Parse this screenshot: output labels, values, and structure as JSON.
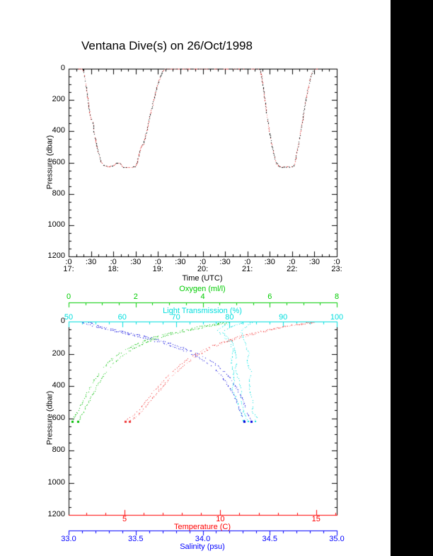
{
  "page": {
    "background": "#ffffff",
    "right_band_color": "#000000"
  },
  "chart_data": [
    {
      "type": "line",
      "title": "Ventana Dive(s) on 26/Oct/1998",
      "xlabel": "Time (UTC)",
      "ylabel": "Pressure (dbar)",
      "xlim_hours": [
        17,
        23
      ],
      "ylim": [
        0,
        1200
      ],
      "grid": false,
      "y_tick_values": [
        0,
        200,
        400,
        600,
        800,
        1000,
        1200
      ],
      "y_tick_labels": [
        "0",
        "200",
        "400",
        "600",
        "800",
        "1000",
        "1200"
      ],
      "y_minor_step": 50,
      "x_major_step_hours": 0.5,
      "x_minor_step_hours": 0.16667,
      "x_tick_labels_minute_row": [
        ":0",
        ":30",
        ":0",
        ":30",
        ":0",
        ":30",
        ":0",
        ":30",
        ":0",
        ":30",
        ":0",
        ":30",
        ":0"
      ],
      "x_tick_labels_hour_row": [
        "17:",
        "18:",
        "19:",
        "20:",
        "21:",
        "22:",
        "23:"
      ],
      "axis_color": "#000000",
      "series": [
        {
          "name": "dive-depth-profile",
          "style": "dotted",
          "dot_colors": [
            "#000000",
            "#000000",
            "#cc2222",
            "#ee7777"
          ],
          "points_time_pressure": [
            [
              17.22,
              0
            ],
            [
              17.31,
              0
            ],
            [
              17.35,
              40
            ],
            [
              17.4,
              140
            ],
            [
              17.44,
              230
            ],
            [
              17.48,
              300
            ],
            [
              17.51,
              330
            ],
            [
              17.54,
              345
            ],
            [
              17.57,
              420
            ],
            [
              17.61,
              475
            ],
            [
              17.65,
              525
            ],
            [
              17.69,
              570
            ],
            [
              17.73,
              600
            ],
            [
              17.77,
              615
            ],
            [
              17.83,
              622
            ],
            [
              17.9,
              625
            ],
            [
              17.97,
              621
            ],
            [
              18.02,
              616
            ],
            [
              18.06,
              604
            ],
            [
              18.1,
              600
            ],
            [
              18.14,
              604
            ],
            [
              18.18,
              616
            ],
            [
              18.22,
              628
            ],
            [
              18.3,
              630
            ],
            [
              18.42,
              629
            ],
            [
              18.49,
              624
            ],
            [
              18.53,
              598
            ],
            [
              18.57,
              548
            ],
            [
              18.6,
              510
            ],
            [
              18.63,
              488
            ],
            [
              18.67,
              483
            ],
            [
              18.71,
              432
            ],
            [
              18.76,
              372
            ],
            [
              18.81,
              308
            ],
            [
              18.86,
              246
            ],
            [
              18.91,
              186
            ],
            [
              18.96,
              128
            ],
            [
              19.01,
              78
            ],
            [
              19.06,
              40
            ],
            [
              19.1,
              14
            ],
            [
              19.15,
              2
            ],
            [
              19.21,
              0
            ],
            [
              21.27,
              0
            ],
            [
              21.31,
              45
            ],
            [
              21.36,
              140
            ],
            [
              21.41,
              250
            ],
            [
              21.46,
              350
            ],
            [
              21.51,
              440
            ],
            [
              21.56,
              515
            ],
            [
              21.61,
              572
            ],
            [
              21.65,
              605
            ],
            [
              21.69,
              620
            ],
            [
              21.74,
              626
            ],
            [
              21.88,
              628
            ],
            [
              22.01,
              626
            ],
            [
              22.05,
              612
            ],
            [
              22.09,
              558
            ],
            [
              22.14,
              478
            ],
            [
              22.19,
              392
            ],
            [
              22.24,
              308
            ],
            [
              22.29,
              222
            ],
            [
              22.34,
              142
            ],
            [
              22.39,
              78
            ],
            [
              22.43,
              34
            ],
            [
              22.47,
              8
            ],
            [
              22.51,
              0
            ],
            [
              22.58,
              0
            ]
          ]
        }
      ]
    },
    {
      "type": "scatter",
      "ylabel": "Pressure (dbar)",
      "ylim": [
        0,
        1200
      ],
      "y_tick_values": [
        0,
        200,
        400,
        600,
        800,
        1000,
        1200
      ],
      "y_tick_labels": [
        "0",
        "200",
        "400",
        "600",
        "800",
        "1000",
        "1200"
      ],
      "y_minor_step": 50,
      "x_axes": [
        {
          "name": "oxygen",
          "label": "Oxygen (ml/l)",
          "color": "#00cc00",
          "range": [
            0,
            8
          ],
          "tick_values": [
            0,
            2,
            4,
            6,
            8
          ],
          "tick_labels": [
            "0",
            "2",
            "4",
            "6",
            "8"
          ],
          "minor_step": 0.5,
          "position": "floating-top"
        },
        {
          "name": "light-transmission",
          "label": "Light Transmission (%)",
          "color": "#00dede",
          "range": [
            50,
            100
          ],
          "tick_values": [
            50,
            60,
            70,
            80,
            90,
            100
          ],
          "tick_labels": [
            "50",
            "60",
            "70",
            "80",
            "90",
            "100"
          ],
          "minor_step": 2.5,
          "position": "top-edge"
        },
        {
          "name": "temperature",
          "label": "Temperature (C)",
          "color": "#ff0000",
          "range": [
            2.08,
            16.08
          ],
          "tick_values": [
            5,
            10,
            15
          ],
          "tick_labels": [
            "5",
            "10",
            "15"
          ],
          "minor_step": 1,
          "position": "bottom-edge"
        },
        {
          "name": "salinity",
          "label": "Salinity (psu)",
          "color": "#0000ff",
          "range": [
            33.0,
            35.0
          ],
          "tick_values": [
            33.0,
            33.5,
            34.0,
            34.5,
            35.0
          ],
          "tick_labels": [
            "33.0",
            "33.5",
            "34.0",
            "34.5",
            "35.0"
          ],
          "minor_step": 0.1,
          "position": "floating-bottom"
        }
      ],
      "series": [
        {
          "name": "oxygen-profile",
          "axis": "oxygen",
          "dot_colors": [
            "#00bb00",
            "#00bb00",
            "#55dd55"
          ],
          "trace_value_offsets": [
            0,
            0.18
          ],
          "end_blob": true,
          "traces": [
            [
              [
                4.6,
                4
              ],
              [
                4.35,
                14
              ],
              [
                3.95,
                28
              ],
              [
                3.5,
                48
              ],
              [
                3.05,
                68
              ],
              [
                2.65,
                90
              ],
              [
                2.3,
                112
              ],
              [
                2.05,
                135
              ],
              [
                1.8,
                160
              ],
              [
                1.58,
                188
              ],
              [
                1.38,
                218
              ],
              [
                1.18,
                252
              ],
              [
                1.0,
                292
              ],
              [
                0.85,
                335
              ],
              [
                0.7,
                382
              ],
              [
                0.58,
                430
              ],
              [
                0.45,
                480
              ],
              [
                0.33,
                528
              ],
              [
                0.23,
                568
              ],
              [
                0.15,
                598
              ],
              [
                0.1,
                618
              ]
            ]
          ]
        },
        {
          "name": "light-transmission-profile",
          "axis": "light-transmission",
          "dot_colors": [
            "#00dddd",
            "#00dddd",
            "#77ffff"
          ],
          "trace_value_offsets": [
            0
          ],
          "end_blob": false,
          "wiggle": true,
          "traces": [
            [
              [
                82.5,
                2
              ],
              [
                81.2,
                18
              ],
              [
                79.4,
                42
              ],
              [
                78.4,
                66
              ],
              [
                79.4,
                96
              ],
              [
                80.6,
                134
              ],
              [
                81.1,
                182
              ],
              [
                81.5,
                240
              ],
              [
                81.0,
                300
              ],
              [
                81.5,
                360
              ],
              [
                82.0,
                422
              ],
              [
                82.1,
                484
              ],
              [
                82.6,
                542
              ],
              [
                83.1,
                588
              ],
              [
                83.5,
                616
              ]
            ],
            [
              [
                84.0,
                2
              ],
              [
                83.1,
                26
              ],
              [
                82.2,
                56
              ],
              [
                82.6,
                92
              ],
              [
                83.1,
                138
              ],
              [
                83.6,
                196
              ],
              [
                83.1,
                256
              ],
              [
                83.9,
                316
              ],
              [
                83.5,
                378
              ],
              [
                84.0,
                440
              ],
              [
                84.5,
                498
              ],
              [
                84.1,
                552
              ],
              [
                84.9,
                596
              ],
              [
                84.5,
                616
              ]
            ],
            [
              [
                80.2,
                2
              ],
              [
                79.2,
                22
              ],
              [
                77.8,
                50
              ],
              [
                78.6,
                86
              ],
              [
                79.9,
                126
              ],
              [
                80.5,
                176
              ],
              [
                80.1,
                236
              ],
              [
                80.6,
                296
              ],
              [
                81.0,
                356
              ],
              [
                80.6,
                416
              ],
              [
                81.1,
                476
              ],
              [
                81.6,
                536
              ],
              [
                82.0,
                582
              ],
              [
                82.4,
                612
              ]
            ]
          ]
        },
        {
          "name": "temperature-profile",
          "axis": "temperature",
          "dot_colors": [
            "#ee3333",
            "#ee3333",
            "#ff9999"
          ],
          "trace_value_offsets": [
            0,
            0.22
          ],
          "end_blob": true,
          "traces": [
            [
              [
                14.7,
                3
              ],
              [
                14.25,
                10
              ],
              [
                13.6,
                22
              ],
              [
                12.85,
                38
              ],
              [
                12.1,
                58
              ],
              [
                11.35,
                80
              ],
              [
                10.65,
                103
              ],
              [
                10.0,
                128
              ],
              [
                9.45,
                155
              ],
              [
                8.95,
                183
              ],
              [
                8.5,
                213
              ],
              [
                8.1,
                247
              ],
              [
                7.7,
                286
              ],
              [
                7.32,
                328
              ],
              [
                6.97,
                372
              ],
              [
                6.63,
                418
              ],
              [
                6.3,
                464
              ],
              [
                6.0,
                508
              ],
              [
                5.72,
                548
              ],
              [
                5.45,
                580
              ],
              [
                5.2,
                602
              ],
              [
                5.02,
                618
              ]
            ]
          ]
        },
        {
          "name": "salinity-profile",
          "axis": "salinity",
          "dot_colors": [
            "#0000dd",
            "#0000dd",
            "#7777ee"
          ],
          "trace_value_offsets": [
            0,
            0.05
          ],
          "end_blob": true,
          "traces": [
            [
              [
                33.1,
                3
              ],
              [
                33.13,
                14
              ],
              [
                33.2,
                32
              ],
              [
                33.33,
                56
              ],
              [
                33.47,
                82
              ],
              [
                33.6,
                108
              ],
              [
                33.71,
                136
              ],
              [
                33.81,
                164
              ],
              [
                33.9,
                193
              ],
              [
                33.97,
                222
              ],
              [
                34.03,
                255
              ],
              [
                34.09,
                294
              ],
              [
                34.14,
                338
              ],
              [
                34.18,
                386
              ],
              [
                34.22,
                438
              ],
              [
                34.25,
                492
              ],
              [
                34.27,
                540
              ],
              [
                34.29,
                580
              ],
              [
                34.31,
                618
              ]
            ]
          ]
        }
      ]
    }
  ]
}
